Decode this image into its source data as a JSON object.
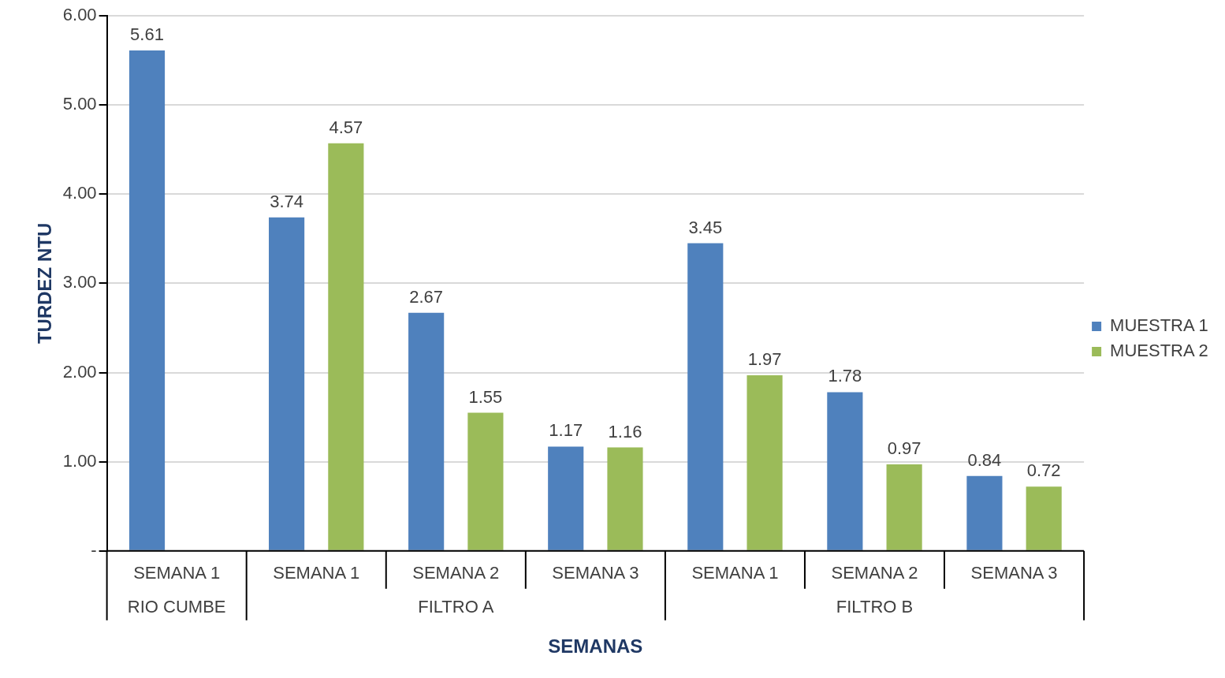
{
  "chart_data": {
    "type": "bar",
    "xlabel": "SEMANAS",
    "ylabel": "TURDEZ NTU",
    "categories": [
      "SEMANA 1",
      "SEMANA 1",
      "SEMANA 2",
      "SEMANA 3",
      "SEMANA 1",
      "SEMANA 2",
      "SEMANA 3"
    ],
    "annotations": [
      "RIO CUMBE",
      "FILTRO A",
      "FILTRO B"
    ],
    "series": [
      {
        "name": "MUESTRA 1",
        "color": "#4f81bd",
        "values": [
          5.61,
          3.74,
          2.67,
          1.17,
          3.45,
          1.78,
          0.84
        ]
      },
      {
        "name": "MUESTRA 2",
        "color": "#9bbb59",
        "values": [
          null,
          4.57,
          1.55,
          1.16,
          1.97,
          0.97,
          0.72
        ]
      }
    ],
    "ylim": [
      0,
      6
    ],
    "yticks": [
      {
        "value": 0,
        "label": "-"
      },
      {
        "value": 1,
        "label": "1.00"
      },
      {
        "value": 2,
        "label": "2.00"
      },
      {
        "value": 3,
        "label": "3.00"
      },
      {
        "value": 4,
        "label": "4.00"
      },
      {
        "value": 5,
        "label": "5.00"
      },
      {
        "value": 6,
        "label": "6.00"
      }
    ],
    "grid": "y",
    "legend": "right",
    "data_labels": true
  }
}
